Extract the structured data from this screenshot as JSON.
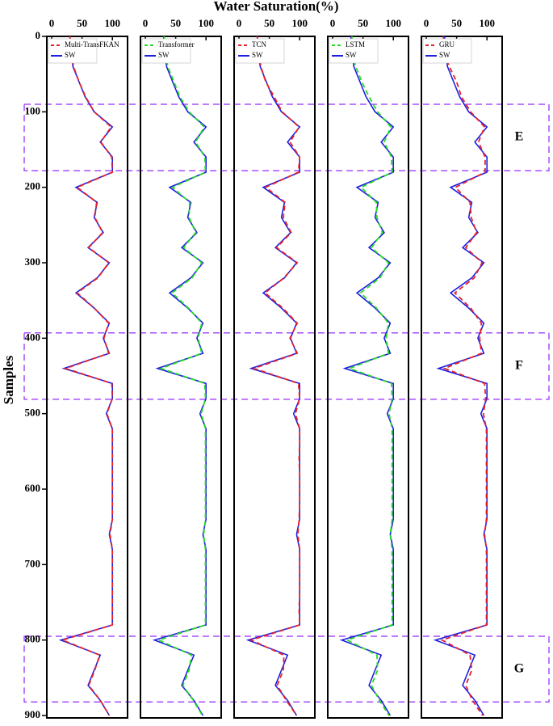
{
  "chart_data": [
    {
      "type": "line",
      "title": "Water Saturation(%)",
      "y_label": "Samples",
      "samples": [
        0,
        20,
        40,
        60,
        80,
        100,
        120,
        140,
        160,
        180,
        200,
        220,
        240,
        260,
        280,
        300,
        320,
        340,
        360,
        380,
        400,
        420,
        440,
        460,
        480,
        500,
        520,
        540,
        560,
        580,
        600,
        620,
        640,
        660,
        680,
        700,
        720,
        740,
        760,
        780,
        800,
        820,
        840,
        860,
        880,
        900
      ],
      "xlim": [
        -8,
        125
      ],
      "xticks": [
        0,
        50,
        100
      ],
      "ylim": [
        0,
        900
      ],
      "yticks": [
        0,
        100,
        200,
        300,
        400,
        500,
        600,
        700,
        800,
        900
      ],
      "series": [
        {
          "name": "Multi-TransFKAN",
          "color": "#e8202a",
          "dashed": true,
          "values": [
            30,
            32,
            36,
            45,
            56,
            70,
            98,
            81,
            99,
            100,
            42,
            74,
            71,
            84,
            61,
            94,
            76,
            42,
            70,
            94,
            86,
            94,
            23,
            99,
            100,
            91,
            100,
            100,
            100,
            100,
            100,
            100,
            100,
            96,
            100,
            100,
            100,
            100,
            100,
            100,
            18,
            79,
            71,
            61,
            80,
            95
          ]
        },
        {
          "name": "SW",
          "color": "#1f1fe0",
          "dashed": false,
          "values": [
            30,
            32,
            35,
            45,
            55,
            70,
            100,
            80,
            100,
            100,
            40,
            75,
            70,
            85,
            60,
            95,
            75,
            40,
            70,
            95,
            85,
            95,
            20,
            100,
            100,
            90,
            100,
            100,
            100,
            100,
            100,
            100,
            100,
            95,
            100,
            100,
            100,
            100,
            100,
            100,
            15,
            80,
            70,
            60,
            80,
            95
          ]
        }
      ]
    },
    {
      "type": "line",
      "samples": [
        0,
        20,
        40,
        60,
        80,
        100,
        120,
        140,
        160,
        180,
        200,
        220,
        240,
        260,
        280,
        300,
        320,
        340,
        360,
        380,
        400,
        420,
        440,
        460,
        480,
        500,
        520,
        540,
        560,
        580,
        600,
        620,
        640,
        660,
        680,
        700,
        720,
        740,
        760,
        780,
        800,
        820,
        840,
        860,
        880,
        900
      ],
      "xlim": [
        -8,
        125
      ],
      "xticks": [
        0,
        50,
        100
      ],
      "ylim": [
        0,
        900
      ],
      "series": [
        {
          "name": "Transformer",
          "color": "#22dd22",
          "dashed": true,
          "values": [
            31,
            33,
            37,
            47,
            57,
            72,
            97,
            83,
            98,
            99,
            45,
            73,
            72,
            83,
            63,
            93,
            77,
            44,
            71,
            93,
            87,
            93,
            26,
            98,
            99,
            92,
            99,
            99,
            99,
            99,
            99,
            99,
            99,
            96,
            99,
            99,
            99,
            99,
            99,
            99,
            22,
            76,
            72,
            62,
            79,
            94
          ]
        },
        {
          "name": "SW",
          "color": "#1f1fe0",
          "dashed": false,
          "values": [
            30,
            32,
            35,
            45,
            55,
            70,
            100,
            80,
            100,
            100,
            40,
            75,
            70,
            85,
            60,
            95,
            75,
            40,
            70,
            95,
            85,
            95,
            20,
            100,
            100,
            90,
            100,
            100,
            100,
            100,
            100,
            100,
            100,
            95,
            100,
            100,
            100,
            100,
            100,
            100,
            15,
            80,
            70,
            60,
            80,
            95
          ]
        }
      ]
    },
    {
      "type": "line",
      "samples": [
        0,
        20,
        40,
        60,
        80,
        100,
        120,
        140,
        160,
        180,
        200,
        220,
        240,
        260,
        280,
        300,
        320,
        340,
        360,
        380,
        400,
        420,
        440,
        460,
        480,
        500,
        520,
        540,
        560,
        580,
        600,
        620,
        640,
        660,
        680,
        700,
        720,
        740,
        760,
        780,
        800,
        820,
        840,
        860,
        880,
        900
      ],
      "xlim": [
        -8,
        125
      ],
      "xticks": [
        0,
        50,
        100
      ],
      "ylim": [
        0,
        900
      ],
      "series": [
        {
          "name": "TCN",
          "color": "#e8202a",
          "dashed": true,
          "values": [
            30,
            33,
            36,
            44,
            58,
            71,
            99,
            84,
            100,
            98,
            44,
            76,
            73,
            86,
            62,
            96,
            74,
            43,
            72,
            96,
            84,
            96,
            25,
            98,
            100,
            93,
            100,
            100,
            99,
            100,
            100,
            100,
            99,
            97,
            100,
            100,
            100,
            100,
            99,
            100,
            20,
            74,
            73,
            63,
            78,
            95
          ]
        },
        {
          "name": "SW",
          "color": "#1f1fe0",
          "dashed": false,
          "values": [
            30,
            32,
            35,
            45,
            55,
            70,
            100,
            80,
            100,
            100,
            40,
            75,
            70,
            85,
            60,
            95,
            75,
            40,
            70,
            95,
            85,
            95,
            20,
            100,
            100,
            90,
            100,
            100,
            100,
            100,
            100,
            100,
            100,
            95,
            100,
            100,
            100,
            100,
            100,
            100,
            15,
            80,
            70,
            60,
            80,
            95
          ]
        }
      ]
    },
    {
      "type": "line",
      "samples": [
        0,
        20,
        40,
        60,
        80,
        100,
        120,
        140,
        160,
        180,
        200,
        220,
        240,
        260,
        280,
        300,
        320,
        340,
        360,
        380,
        400,
        420,
        440,
        460,
        480,
        500,
        520,
        540,
        560,
        580,
        600,
        620,
        640,
        660,
        680,
        700,
        720,
        740,
        760,
        780,
        800,
        820,
        840,
        860,
        880,
        900
      ],
      "xlim": [
        -8,
        125
      ],
      "xticks": [
        0,
        50,
        100
      ],
      "ylim": [
        0,
        900
      ],
      "series": [
        {
          "name": "LSTM",
          "color": "#22dd22",
          "dashed": true,
          "values": [
            32,
            31,
            38,
            48,
            60,
            74,
            96,
            85,
            97,
            98,
            47,
            72,
            73,
            82,
            64,
            92,
            78,
            46,
            72,
            92,
            88,
            92,
            28,
            97,
            98,
            93,
            98,
            98,
            98,
            98,
            98,
            98,
            98,
            95,
            98,
            98,
            98,
            98,
            98,
            98,
            24,
            73,
            74,
            64,
            77,
            93
          ]
        },
        {
          "name": "SW",
          "color": "#1f1fe0",
          "dashed": false,
          "values": [
            30,
            32,
            35,
            45,
            55,
            70,
            100,
            80,
            100,
            100,
            40,
            75,
            70,
            85,
            60,
            95,
            75,
            40,
            70,
            95,
            85,
            95,
            20,
            100,
            100,
            90,
            100,
            100,
            100,
            100,
            100,
            100,
            100,
            95,
            100,
            100,
            100,
            100,
            100,
            100,
            15,
            80,
            70,
            60,
            80,
            95
          ]
        }
      ]
    },
    {
      "type": "line",
      "samples": [
        0,
        20,
        40,
        60,
        80,
        100,
        120,
        140,
        160,
        180,
        200,
        220,
        240,
        260,
        280,
        300,
        320,
        340,
        360,
        380,
        400,
        420,
        440,
        460,
        480,
        500,
        520,
        540,
        560,
        580,
        600,
        620,
        640,
        660,
        680,
        700,
        720,
        740,
        760,
        780,
        800,
        820,
        840,
        860,
        880,
        900
      ],
      "xlim": [
        -8,
        125
      ],
      "xticks": [
        0,
        50,
        100
      ],
      "ylim": [
        0,
        900
      ],
      "series": [
        {
          "name": "GRU",
          "color": "#e8202a",
          "dashed": true,
          "values": [
            28,
            30,
            38,
            50,
            58,
            73,
            96,
            86,
            97,
            97,
            48,
            72,
            74,
            83,
            65,
            92,
            79,
            47,
            73,
            91,
            88,
            91,
            30,
            96,
            98,
            94,
            99,
            99,
            99,
            99,
            99,
            99,
            99,
            96,
            99,
            99,
            99,
            99,
            99,
            99,
            26,
            72,
            75,
            65,
            76,
            93
          ]
        },
        {
          "name": "SW",
          "color": "#1f1fe0",
          "dashed": false,
          "values": [
            30,
            32,
            35,
            45,
            55,
            70,
            100,
            80,
            100,
            100,
            40,
            75,
            70,
            85,
            60,
            95,
            75,
            40,
            70,
            95,
            85,
            95,
            20,
            100,
            100,
            90,
            100,
            100,
            100,
            100,
            100,
            100,
            100,
            95,
            100,
            100,
            100,
            100,
            100,
            100,
            15,
            80,
            70,
            60,
            80,
            95
          ]
        }
      ]
    }
  ],
  "regions": [
    {
      "label": "E",
      "range": [
        90,
        178
      ]
    },
    {
      "label": "F",
      "range": [
        393,
        481
      ]
    },
    {
      "label": "G",
      "range": [
        795,
        882
      ]
    }
  ]
}
